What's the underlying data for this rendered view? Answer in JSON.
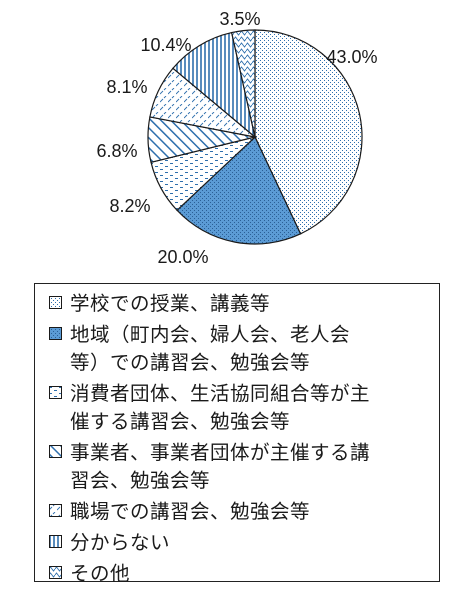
{
  "chart_data": {
    "type": "pie",
    "slices": [
      {
        "label": "学校での授業、講義等",
        "value": 43.0,
        "value_label": "43.0%",
        "pattern": "dots",
        "fill": "#ffffff",
        "stroke": "#2e6fad"
      },
      {
        "label": "地域（町内会、婦人会、老人会等）での講習会、勉強会等",
        "value": 20.0,
        "value_label": "20.0%",
        "pattern": "dense",
        "fill": "#5b9bd5",
        "stroke": "#2e6fad"
      },
      {
        "label": "消費者団体、生活協同組合等が主催する講習会、勉強会等",
        "value": 8.2,
        "value_label": "8.2%",
        "pattern": "dashes",
        "fill": "#ffffff",
        "stroke": "#2e6fad"
      },
      {
        "label": "事業者、事業者団体が主催する講習会、勉強会等",
        "value": 6.8,
        "value_label": "6.8%",
        "pattern": "diagonal",
        "fill": "#ffffff",
        "stroke": "#2e6fad"
      },
      {
        "label": "職場での講習会、勉強会等",
        "value": 8.1,
        "value_label": "8.1%",
        "pattern": "light-dash",
        "fill": "#ffffff",
        "stroke": "#2e6fad"
      },
      {
        "label": "分からない",
        "value": 10.4,
        "value_label": "10.4%",
        "pattern": "vertical",
        "fill": "#ffffff",
        "stroke": "#2e6fad"
      },
      {
        "label": "その他",
        "value": 3.5,
        "value_label": "3.5%",
        "pattern": "zigzag",
        "fill": "#ffffff",
        "stroke": "#2e6fad"
      }
    ],
    "legend": {
      "placement": "bottom",
      "entries": [
        {
          "lines": [
            "学校での授業、講義等"
          ]
        },
        {
          "lines": [
            "地域（町内会、婦人会、老人会",
            "等）での講習会、勉強会等"
          ]
        },
        {
          "lines": [
            "消費者団体、生活協同組合等が主",
            "催する講習会、勉強会等"
          ]
        },
        {
          "lines": [
            "事業者、事業者団体が主催する講",
            "習会、勉強会等"
          ]
        },
        {
          "lines": [
            "職場での講習会、勉強会等"
          ]
        },
        {
          "lines": [
            "分からない"
          ]
        },
        {
          "lines": [
            "その他"
          ]
        }
      ]
    },
    "start_angle_deg": 0,
    "direction": "clockwise",
    "outline_color": "#1a1a1a"
  }
}
